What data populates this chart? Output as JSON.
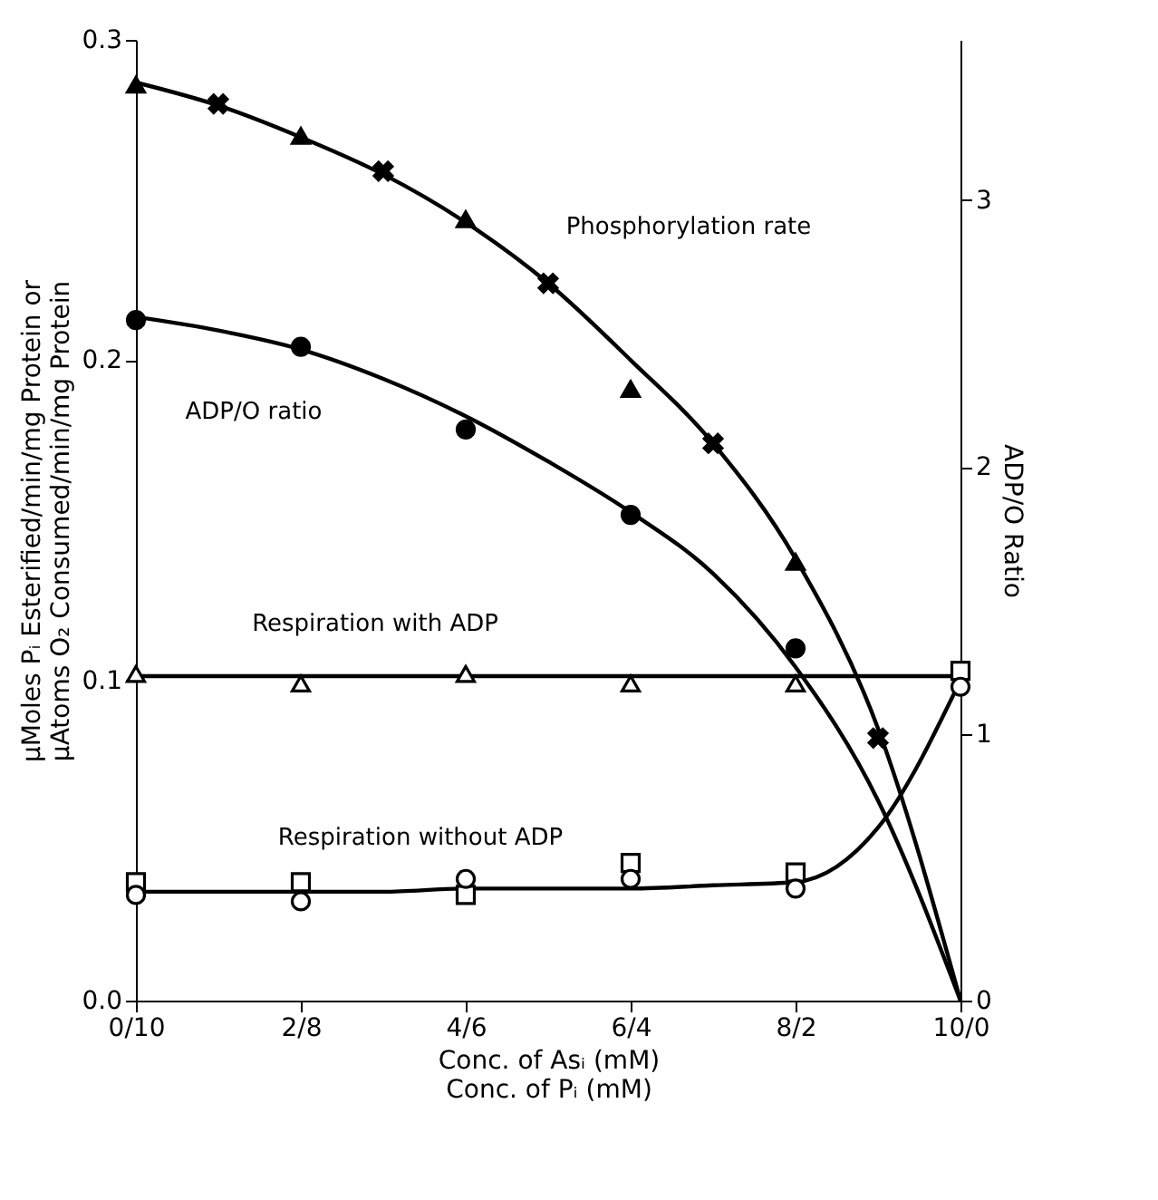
{
  "chart_data": {
    "type": "line",
    "xlabel": "Conc. of Asᵢ    (mM)\nConc. of  Pᵢ     (mM)",
    "ylabel": "μMoles Pᵢ Esterified/min/mg Protein or\nμAtoms O₂ Consumed/min/mg Protein",
    "y2label": "ADP/O  Ratio",
    "categories": [
      "0/10",
      null,
      "2/8",
      null,
      "4/6",
      null,
      "6/4",
      null,
      "8/2",
      null,
      "10/0"
    ],
    "ylim": [
      0,
      0.3
    ],
    "yticks": [
      {
        "value": 0,
        "label": "0.0"
      },
      0.1,
      0.2,
      0.3
    ],
    "y2lim": [
      0,
      3.6
    ],
    "y2ticks": [
      0,
      1,
      2,
      3
    ],
    "line_style": "solid",
    "series": [
      {
        "marker": "none",
        "color": "#000000",
        "values": [
          0.2867,
          0.2795,
          0.2696,
          0.258,
          0.243,
          0.224,
          0.2,
          0.174,
          0.138,
          0.085,
          0
        ]
      },
      {
        "type": "scatter",
        "marker": "triangle",
        "color": "#000000",
        "values": [
          0.286,
          null,
          0.27,
          null,
          0.244,
          null,
          0.191,
          null,
          0.137,
          null,
          null
        ]
      },
      {
        "type": "scatter",
        "marker": "cross",
        "color": "#000000",
        "values": [
          null,
          0.28,
          null,
          0.259,
          null,
          0.224,
          null,
          0.174,
          null,
          0.082,
          null
        ]
      },
      {
        "axis": "y2",
        "marker": "none",
        "color": "#000000",
        "values": [
          2.562,
          2.511,
          2.44,
          2.33,
          2.19,
          2.02,
          1.83,
          1.6,
          1.25,
          0.75,
          0
        ]
      },
      {
        "type": "scatter",
        "axis": "y2",
        "marker": "circle",
        "color": "#000000",
        "values": [
          2.55,
          null,
          2.45,
          null,
          2.14,
          null,
          1.82,
          null,
          1.32,
          null,
          null
        ]
      },
      {
        "marker": "none",
        "color": "#000000",
        "values": [
          0.1013,
          0.1013,
          0.1013,
          0.1013,
          0.1013,
          0.1013,
          0.1013,
          0.1013,
          0.1013,
          0.1013,
          0.1013
        ]
      },
      {
        "type": "scatter",
        "marker": "triangle",
        "color": "#ffffff",
        "values": [
          0.102,
          null,
          0.099,
          null,
          0.102,
          null,
          0.099,
          null,
          0.099,
          null,
          null
        ]
      },
      {
        "marker": "none",
        "color": "#000000",
        "values": [
          0.034,
          0.034,
          0.034,
          0.034,
          0.035,
          0.035,
          0.035,
          0.036,
          0.037,
          0.054,
          0.1
        ]
      },
      {
        "type": "scatter",
        "marker": "square",
        "color": "#ffffff",
        "values": [
          0.037,
          null,
          0.037,
          null,
          0.033,
          null,
          0.043,
          null,
          0.04,
          null,
          0.103
        ]
      },
      {
        "type": "scatter",
        "marker": "circle",
        "color": "#ffffff",
        "values": [
          0.033,
          null,
          0.031,
          null,
          0.038,
          null,
          0.038,
          null,
          0.035,
          null,
          0.098
        ]
      }
    ],
    "annotations": [
      "Phosphorylation rate",
      "ADP/O ratio",
      "Respiration with ADP",
      "Respiration without ADP"
    ]
  }
}
